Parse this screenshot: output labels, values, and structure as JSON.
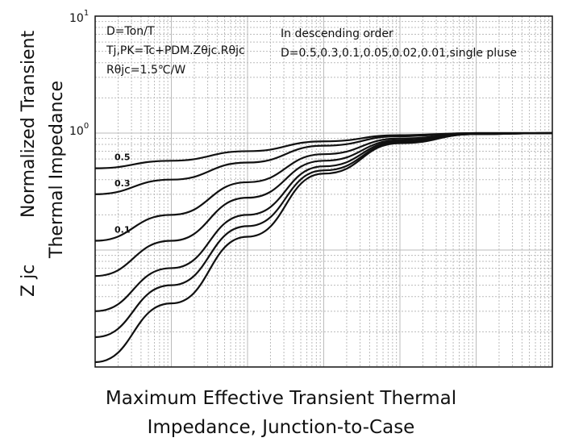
{
  "chart_data": {
    "type": "line",
    "title": "",
    "xlabel": "Maximum Effective Transient Thermal Impedance, Junction-to-Case",
    "ylabel_lines": [
      "Normalized Transient",
      "Thermal   Impedance",
      "Z   jc"
    ],
    "yscale": "log",
    "xscale": "log",
    "ylim": [
      0.01,
      10
    ],
    "xlim": [
      1e-05,
      10
    ],
    "grid": true,
    "y_tick_labels": [
      {
        "value": 10,
        "base": "10",
        "exp": "1"
      },
      {
        "value": 1,
        "base": "10",
        "exp": "0"
      }
    ],
    "annotations": {
      "formula_lines": [
        "D=Ton/T",
        "Tj,PK=Tc+PDM.Zθjc.Rθjc",
        "Rθjc=1.5℃/W"
      ],
      "order_lines": [
        "In descending order",
        "D=0.5,0.3,0.1,0.05,0.02,0.01,single pluse"
      ]
    },
    "x": [
      1e-05,
      0.0001,
      0.001,
      0.01,
      0.1,
      1,
      10
    ],
    "series": [
      {
        "name": "0.5",
        "values": [
          0.5,
          0.58,
          0.7,
          0.85,
          0.96,
          1.0,
          1.0
        ]
      },
      {
        "name": "0.3",
        "values": [
          0.3,
          0.4,
          0.56,
          0.78,
          0.94,
          1.0,
          1.0
        ]
      },
      {
        "name": "0.1",
        "values": [
          0.12,
          0.2,
          0.38,
          0.66,
          0.9,
          0.99,
          1.0
        ]
      },
      {
        "name": "",
        "values": [
          0.06,
          0.12,
          0.28,
          0.58,
          0.87,
          0.99,
          1.0
        ]
      },
      {
        "name": "",
        "values": [
          0.03,
          0.07,
          0.2,
          0.52,
          0.85,
          0.98,
          1.0
        ]
      },
      {
        "name": "",
        "values": [
          0.018,
          0.05,
          0.16,
          0.48,
          0.83,
          0.98,
          1.0
        ]
      },
      {
        "name": "",
        "values": [
          0.011,
          0.035,
          0.13,
          0.45,
          0.82,
          0.98,
          1.0
        ]
      }
    ],
    "colors": {
      "line": "#111111",
      "grid": "#bbbbbb",
      "frame": "#111111"
    }
  }
}
